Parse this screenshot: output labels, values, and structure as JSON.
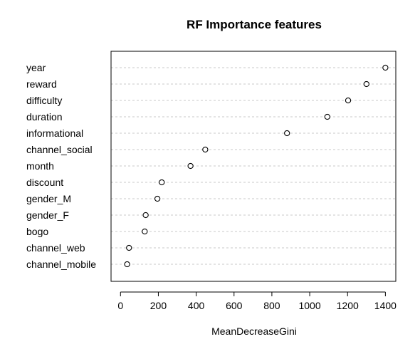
{
  "chart_data": {
    "type": "scatter",
    "title": "RF Importance features",
    "xlabel": "MeanDecreaseGini",
    "ylabel": "",
    "xlim": [
      -50,
      1455
    ],
    "xticks": [
      0,
      200,
      400,
      600,
      800,
      1000,
      1200,
      1400
    ],
    "categories": [
      "year",
      "reward",
      "difficulty",
      "duration",
      "informational",
      "channel_social",
      "month",
      "discount",
      "gender_M",
      "gender_F",
      "bogo",
      "channel_web",
      "channel_mobile"
    ],
    "values": [
      1400,
      1300,
      1203,
      1093,
      880,
      448,
      370,
      218,
      195,
      133,
      128,
      45,
      35
    ],
    "grid": "dotted horizontal lines per category",
    "marker": "open circle"
  }
}
